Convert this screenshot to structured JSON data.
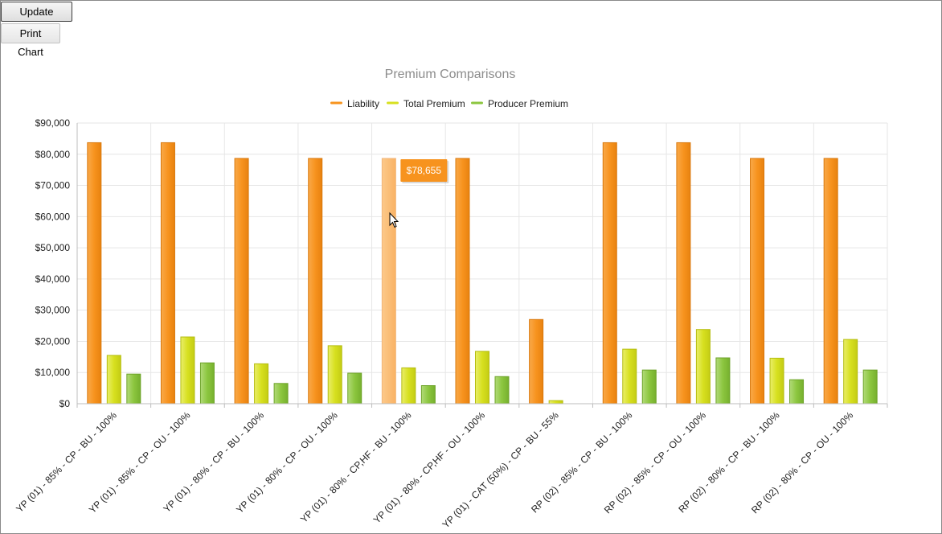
{
  "toolbar": {
    "update_label": "Update Chart",
    "print_label": "Print Chart"
  },
  "chart_data": {
    "type": "bar",
    "title": "Premium Comparisons",
    "xlabel": "",
    "ylabel": "",
    "ylim": [
      0,
      90000
    ],
    "y_ticks": [
      "$0",
      "$10,000",
      "$20,000",
      "$30,000",
      "$40,000",
      "$50,000",
      "$60,000",
      "$70,000",
      "$80,000",
      "$90,000"
    ],
    "grid": true,
    "legend_position": "top",
    "categories": [
      "YP (01) - 85% - CP - BU - 100%",
      "YP (01) - 85% - CP - OU - 100%",
      "YP (01) - 80% - CP - BU - 100%",
      "YP (01) - 80% - CP - OU - 100%",
      "YP (01) - 80% - CP,HF - BU - 100%",
      "YP (01) - 80% - CP,HF - OU - 100%",
      "YP (01) - CAT (50%) - CP - BU - 55%",
      "RP (02) - 85% - CP - BU - 100%",
      "RP (02) - 85% - CP - OU - 100%",
      "RP (02) - 80% - CP - BU - 100%",
      "RP (02) - 80% - CP - OU - 100%"
    ],
    "series": [
      {
        "name": "Liability",
        "color": "#f7931e",
        "values": [
          83700,
          83700,
          78655,
          78655,
          78655,
          78655,
          27000,
          83700,
          83700,
          78655,
          78655
        ]
      },
      {
        "name": "Total Premium",
        "color": "#d7e01f",
        "values": [
          15500,
          21400,
          12800,
          18600,
          11500,
          16800,
          1000,
          17500,
          23800,
          14600,
          20600
        ]
      },
      {
        "name": "Producer Premium",
        "color": "#8cc63f",
        "values": [
          9500,
          13100,
          6500,
          9800,
          5800,
          8700,
          0,
          10800,
          14700,
          7700,
          10800
        ]
      }
    ],
    "tooltip": {
      "text": "$78,655",
      "category_index": 4,
      "series": "Liability"
    }
  }
}
